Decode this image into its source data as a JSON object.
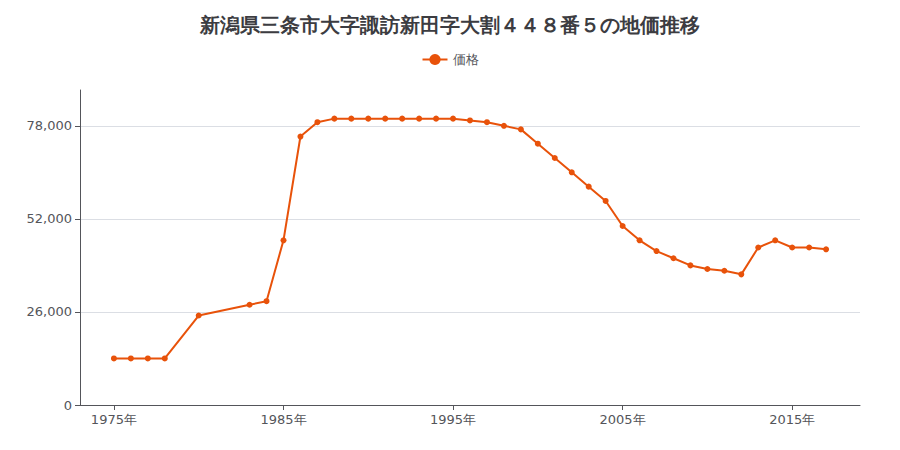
{
  "chart_data": {
    "type": "line",
    "title": "新潟県三条市大字諏訪新田字大割４４８番５の地価推移",
    "x": [
      1975,
      1976,
      1977,
      1978,
      1980,
      1983,
      1984,
      1985,
      1986,
      1987,
      1988,
      1989,
      1990,
      1991,
      1992,
      1993,
      1994,
      1995,
      1996,
      1997,
      1998,
      1999,
      2000,
      2001,
      2002,
      2003,
      2004,
      2005,
      2006,
      2007,
      2008,
      2009,
      2010,
      2011,
      2012,
      2013,
      2014,
      2015,
      2016,
      2017
    ],
    "series": [
      {
        "name": "価格",
        "color": "#E8520A",
        "values": [
          13000,
          13000,
          13000,
          13000,
          25000,
          28000,
          29000,
          46000,
          75000,
          79000,
          80000,
          80000,
          80000,
          80000,
          80000,
          80000,
          80000,
          80000,
          79500,
          79000,
          78000,
          77000,
          73000,
          69000,
          65000,
          61000,
          57000,
          50000,
          46000,
          43000,
          41000,
          39000,
          38000,
          37500,
          36500,
          44000,
          46000,
          44000,
          44000,
          43500
        ]
      }
    ],
    "xlim": [
      1973,
      2019
    ],
    "xticks": [
      {
        "value": 1975,
        "label": "1975年"
      },
      {
        "value": 1985,
        "label": "1985年"
      },
      {
        "value": 1995,
        "label": "1995年"
      },
      {
        "value": 2005,
        "label": "2005年"
      },
      {
        "value": 2015,
        "label": "2015年"
      }
    ],
    "ylim": [
      0,
      88000
    ],
    "yticks": [
      0,
      {
        "value": 26000,
        "label": "26,000"
      },
      {
        "value": 52000,
        "label": "52,000"
      },
      {
        "value": 78000,
        "label": "78,000"
      }
    ],
    "grid": true,
    "legend": "top",
    "marker": "circle"
  }
}
